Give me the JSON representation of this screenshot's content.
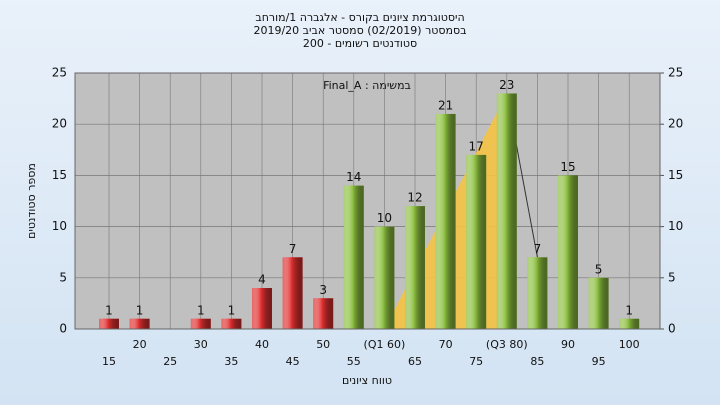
{
  "chart_data": {
    "type": "bar",
    "title": [
      "היסטוגרמת ציונים בקורס - אלגברה 1/מורחב",
      "בסמסטר (02/2019) סמסטר אביב 2019/20",
      "סטודנטים רשומים - 200"
    ],
    "annotation": "במשימה : Final_A",
    "x_label": "טווח ציונים",
    "y_label": "מספר סטודנטים",
    "categories": [
      "15",
      "20",
      "25",
      "30",
      "35",
      "40",
      "45",
      "50",
      "55",
      "(Q1 60)",
      "65",
      "70",
      "75",
      "(Q3 80)",
      "85",
      "90",
      "95",
      "100"
    ],
    "values": [
      1,
      1,
      0,
      1,
      1,
      4,
      7,
      3,
      14,
      10,
      12,
      21,
      17,
      23,
      7,
      15,
      5,
      1
    ],
    "value_labels": [
      "1",
      "1",
      null,
      "1",
      "1",
      "4",
      "7",
      "3",
      "14",
      "10",
      "12",
      "21",
      "17",
      "23",
      "7",
      "15",
      "5",
      "1"
    ],
    "colors": [
      "#e03030",
      "#e03030",
      "#e03030",
      "#e03030",
      "#e03030",
      "#e03030",
      "#e03030",
      "#e03030",
      "#8cbf3f",
      "#8cbf3f",
      "#8cbf3f",
      "#8cbf3f",
      "#8cbf3f",
      "#8cbf3f",
      "#8cbf3f",
      "#8cbf3f",
      "#8cbf3f",
      "#8cbf3f"
    ],
    "ylim": [
      0,
      25
    ],
    "yticks": [
      0,
      5,
      10,
      15,
      20,
      25
    ],
    "y2lim": [
      0,
      25
    ],
    "y2ticks": [
      0,
      5,
      10,
      15,
      20,
      25
    ],
    "grid": true
  }
}
